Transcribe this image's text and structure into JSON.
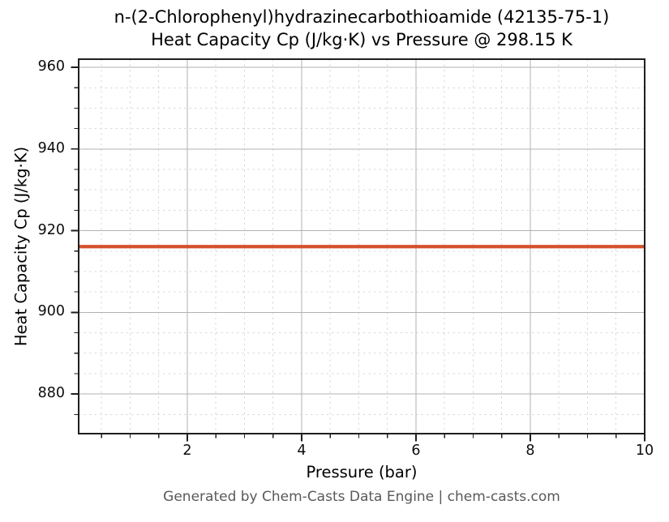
{
  "figure": {
    "title_line1": "n-(2-Chlorophenyl)hydrazinecarbothioamide (42135-75-1)",
    "title_line2": "Heat Capacity Cp (J/kg·K) vs Pressure @ 298.15 K",
    "footer": "Generated by Chem-Casts Data Engine | chem-casts.com"
  },
  "chart_data": {
    "type": "line",
    "title": "n-(2-Chlorophenyl)hydrazinecarbothioamide (42135-75-1) — Heat Capacity Cp (J/kg·K) vs Pressure @ 298.15 K",
    "xlabel": "Pressure (bar)",
    "ylabel": "Heat Capacity Cp (J/kg·K)",
    "xlim": [
      0.1,
      10
    ],
    "ylim": [
      870.3,
      962.0
    ],
    "xticks": [
      2,
      4,
      6,
      8,
      10
    ],
    "yticks": [
      880,
      900,
      920,
      940,
      960
    ],
    "x_minor_step": 0.5,
    "y_minor_step": 5,
    "grid": "major solid, minor dashed",
    "legend_position": "none",
    "series": [
      {
        "name": "Heat Capacity Cp",
        "color": "#d4512b",
        "x": [
          0.1,
          10
        ],
        "y": [
          916.1,
          916.1
        ]
      }
    ],
    "colors": {
      "line": "#d4512b",
      "grid_major": "#b2b2b2",
      "grid_minor": "#d9d9d9",
      "spine": "#1f1f1f",
      "tick": "#1f1f1f",
      "text": "#000000",
      "footer_text": "#595959",
      "background": "#ffffff"
    }
  }
}
